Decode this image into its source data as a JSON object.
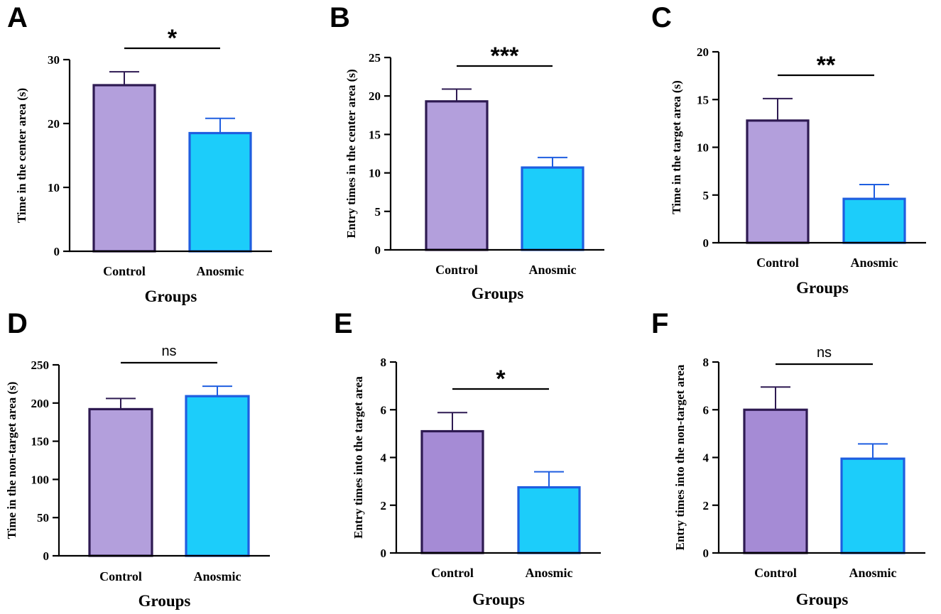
{
  "colors": {
    "control_fill": "#b39fdc",
    "control_stroke": "#2e1a52",
    "anosmic_fill": "#1ccdfa",
    "anosmic_stroke": "#1f5ee0",
    "control_fill_dark": "#a58bd5"
  },
  "chart_data": [
    {
      "type": "bar",
      "panel": "A",
      "title": "",
      "xlabel": "Groups",
      "ylabel": "Time in the center area (s)",
      "categories": [
        "Control",
        "Anosmic"
      ],
      "values": [
        26,
        18.5
      ],
      "errors": [
        2.1,
        2.3
      ],
      "ylim": [
        0,
        30
      ],
      "yticks": [
        "0",
        "10",
        "20",
        "30"
      ],
      "significance": "*"
    },
    {
      "type": "bar",
      "panel": "B",
      "title": "",
      "xlabel": "Groups",
      "ylabel": "Entry times in the center area (s)",
      "categories": [
        "Control",
        "Anosmic"
      ],
      "values": [
        19.3,
        10.7
      ],
      "errors": [
        1.6,
        1.3
      ],
      "ylim": [
        0,
        25
      ],
      "yticks": [
        "0",
        "5",
        "10",
        "15",
        "20",
        "25"
      ],
      "significance": "***"
    },
    {
      "type": "bar",
      "panel": "C",
      "title": "",
      "xlabel": "Groups",
      "ylabel": "Time in the target area (s)",
      "categories": [
        "Control",
        "Anosmic"
      ],
      "values": [
        12.8,
        4.6
      ],
      "errors": [
        2.3,
        1.5
      ],
      "ylim": [
        0,
        20
      ],
      "yticks": [
        "0",
        "5",
        "10",
        "15",
        "20"
      ],
      "significance": "**"
    },
    {
      "type": "bar",
      "panel": "D",
      "title": "",
      "xlabel": "Groups",
      "ylabel": "Time in the non-target area (s)",
      "categories": [
        "Control",
        "Anosmic"
      ],
      "values": [
        192,
        209
      ],
      "errors": [
        14,
        13
      ],
      "ylim": [
        0,
        250
      ],
      "yticks": [
        "0",
        "50",
        "100",
        "150",
        "200",
        "250"
      ],
      "significance": "ns"
    },
    {
      "type": "bar",
      "panel": "E",
      "title": "",
      "xlabel": "Groups",
      "ylabel": "Entry times into the target area",
      "categories": [
        "Control",
        "Anosmic"
      ],
      "values": [
        5.1,
        2.75
      ],
      "errors": [
        0.78,
        0.65
      ],
      "ylim": [
        0,
        8
      ],
      "yticks": [
        "0",
        "2",
        "4",
        "6",
        "8"
      ],
      "significance": "*"
    },
    {
      "type": "bar",
      "panel": "F",
      "title": "",
      "xlabel": "Groups",
      "ylabel": "Entry times into the non-target area",
      "categories": [
        "Control",
        "Anosmic"
      ],
      "values": [
        6.0,
        3.95
      ],
      "errors": [
        0.95,
        0.62
      ],
      "ylim": [
        0,
        8
      ],
      "yticks": [
        "0",
        "2",
        "4",
        "6",
        "8"
      ],
      "significance": "ns"
    }
  ]
}
